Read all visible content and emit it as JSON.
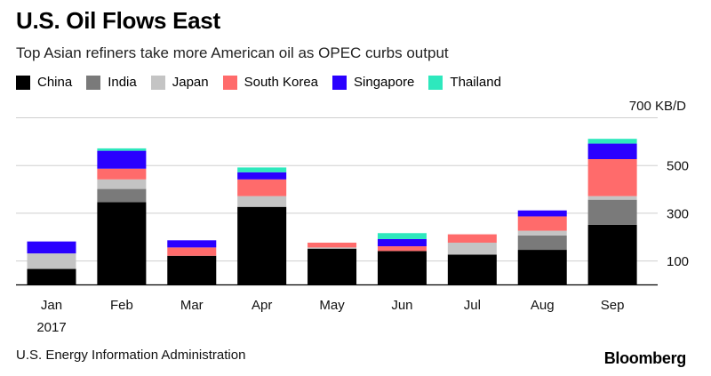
{
  "header": {
    "title": "U.S. Oil Flows East",
    "subtitle": "Top Asian refiners take more American oil as OPEC curbs output"
  },
  "footer": {
    "source": "U.S. Energy Information Administration",
    "brand": "Bloomberg"
  },
  "chart_data": {
    "type": "bar",
    "stacked": true,
    "title": "U.S. Oil Flows East",
    "subtitle": "Top Asian refiners take more American oil as OPEC curbs output",
    "ylabel": "KB/D",
    "ylim": [
      0,
      700
    ],
    "yticks": [
      100,
      300,
      500
    ],
    "ytick_top_label": "700 KB/D",
    "year_label": "2017",
    "categories": [
      "Jan",
      "Feb",
      "Mar",
      "Apr",
      "May",
      "Jun",
      "Jul",
      "Aug",
      "Sep"
    ],
    "legend_position": "top-left",
    "grid": true,
    "series": [
      {
        "name": "China",
        "color": "#000000",
        "values": [
          65,
          345,
          120,
          325,
          150,
          140,
          125,
          145,
          250
        ]
      },
      {
        "name": "India",
        "color": "#7a7a7a",
        "values": [
          0,
          55,
          0,
          0,
          0,
          0,
          0,
          60,
          105
        ]
      },
      {
        "name": "Japan",
        "color": "#c4c4c4",
        "values": [
          65,
          40,
          0,
          45,
          5,
          0,
          50,
          20,
          15
        ]
      },
      {
        "name": "South Korea",
        "color": "#ff6b6b",
        "values": [
          0,
          45,
          35,
          70,
          20,
          20,
          35,
          60,
          155
        ]
      },
      {
        "name": "Singapore",
        "color": "#2a00ff",
        "values": [
          50,
          75,
          30,
          30,
          0,
          30,
          0,
          25,
          65
        ]
      },
      {
        "name": "Thailand",
        "color": "#2ee8bd",
        "values": [
          0,
          10,
          0,
          20,
          0,
          25,
          0,
          0,
          20
        ]
      }
    ]
  }
}
